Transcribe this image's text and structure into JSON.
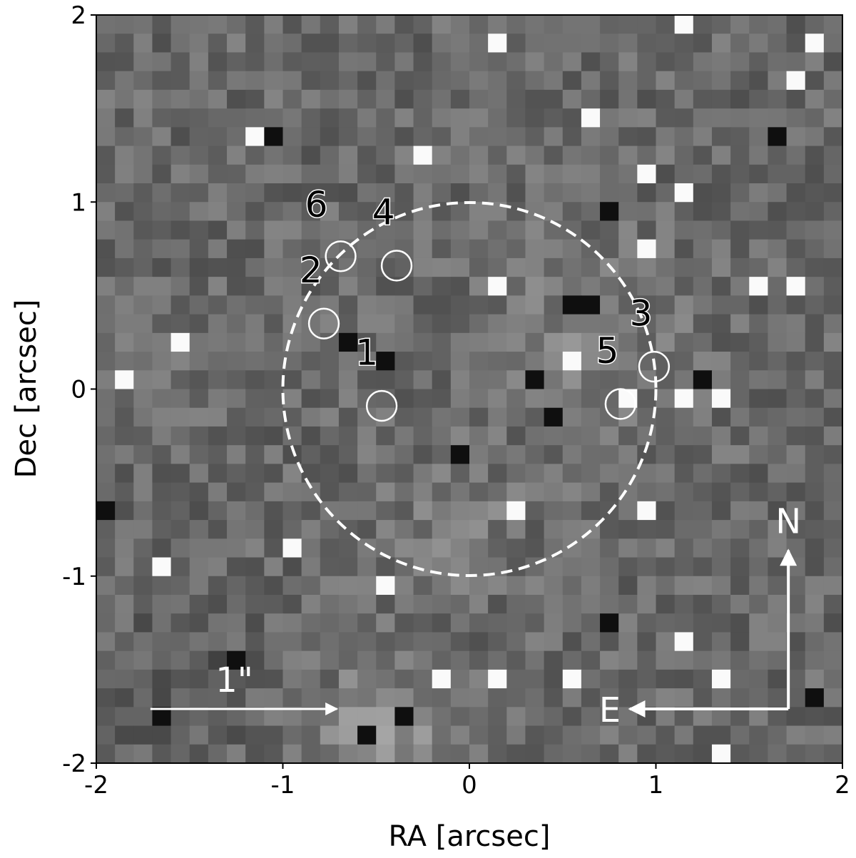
{
  "axes": {
    "xlabel": "RA [arcsec]",
    "ylabel": "Dec [arcsec]",
    "xlim": [
      -2,
      2
    ],
    "ylim": [
      -2,
      2
    ],
    "xticks": [
      {
        "value": -2,
        "label": "-2"
      },
      {
        "value": -1,
        "label": "-1"
      },
      {
        "value": 0,
        "label": "0"
      },
      {
        "value": 1,
        "label": "1"
      },
      {
        "value": 2,
        "label": "2"
      }
    ],
    "yticks": [
      {
        "value": -2,
        "label": "-2"
      },
      {
        "value": -1,
        "label": "-1"
      },
      {
        "value": 0,
        "label": "0"
      },
      {
        "value": 1,
        "label": "1"
      },
      {
        "value": 2,
        "label": "2"
      }
    ]
  },
  "image": {
    "colormap": "grayscale",
    "pixel_scale_arcsec": 0.1
  },
  "dashed_circle": {
    "center": [
      0,
      0
    ],
    "radius_arcsec": 1.0,
    "color": "#ffffff"
  },
  "sources": [
    {
      "id": "1",
      "ra": -0.47,
      "dec": -0.09,
      "label_ra": -0.55,
      "label_dec": 0.13
    },
    {
      "id": "2",
      "ra": -0.78,
      "dec": 0.35,
      "label_ra": -0.85,
      "label_dec": 0.57
    },
    {
      "id": "3",
      "ra": 0.99,
      "dec": 0.12,
      "label_ra": 0.92,
      "label_dec": 0.34
    },
    {
      "id": "4",
      "ra": -0.39,
      "dec": 0.66,
      "label_ra": -0.46,
      "label_dec": 0.88
    },
    {
      "id": "5",
      "ra": 0.81,
      "dec": -0.08,
      "label_ra": 0.74,
      "label_dec": 0.14
    },
    {
      "id": "6",
      "ra": -0.69,
      "dec": 0.71,
      "label_ra": -0.82,
      "label_dec": 0.92
    }
  ],
  "source_marker_radius_arcsec": 0.08,
  "scale_bar": {
    "label": "1\"",
    "length_arcsec": 1.0,
    "start": [
      -1.71,
      -1.71
    ]
  },
  "compass": {
    "north_label": "N",
    "east_label": "E",
    "origin": [
      1.71,
      -1.71
    ],
    "length_arcsec": 0.85
  }
}
